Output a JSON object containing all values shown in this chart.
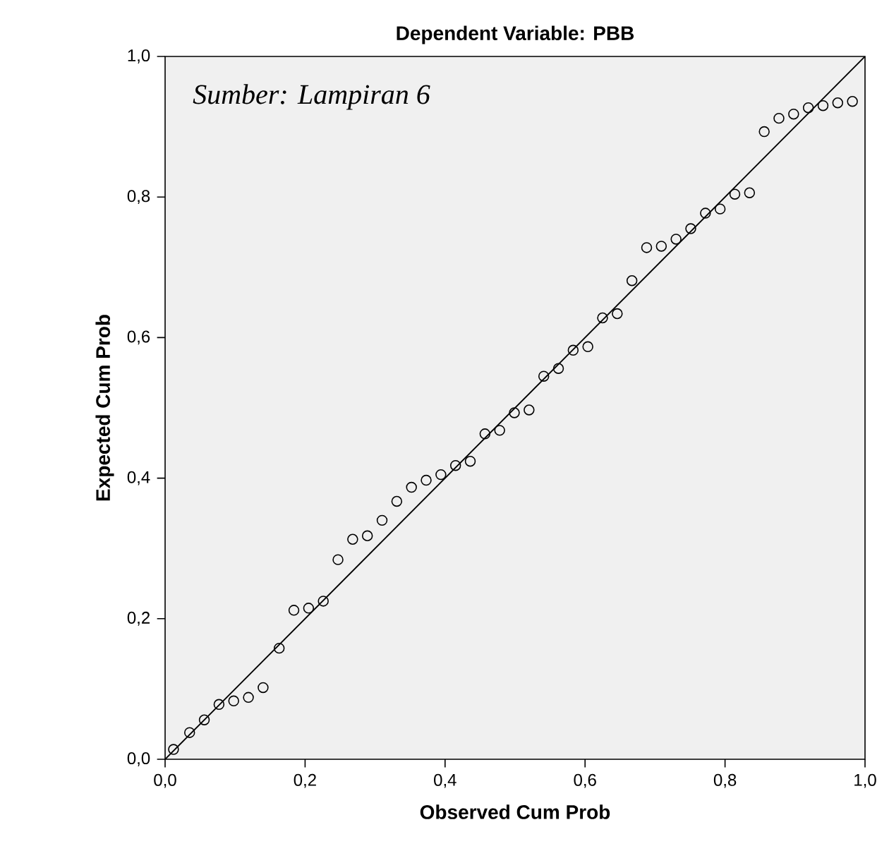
{
  "chart_data": {
    "type": "scatter",
    "title": "Dependent Variable: PBB",
    "xlabel": "Observed Cum Prob",
    "ylabel": "Expected Cum Prob",
    "annotations": [
      "*Sumber: Lampiran 6*"
    ],
    "xlim": [
      0,
      1
    ],
    "ylim": [
      0,
      1
    ],
    "xticks": [
      {
        "value": 0,
        "label": "0,0"
      },
      {
        "value": 0.2,
        "label": "0,2"
      },
      {
        "value": 0.4,
        "label": "0,4"
      },
      {
        "value": 0.6,
        "label": "0,6"
      },
      {
        "value": 0.8,
        "label": "0,8"
      },
      {
        "value": 1,
        "label": "1,0"
      }
    ],
    "yticks": [
      {
        "value": 0,
        "label": "0,0"
      },
      {
        "value": 0.2,
        "label": "0,2"
      },
      {
        "value": 0.4,
        "label": "0,4"
      },
      {
        "value": 0.6,
        "label": "0,6"
      },
      {
        "value": 0.8,
        "label": "0,8"
      },
      {
        "value": 1,
        "label": "1,0"
      }
    ],
    "series": [
      {
        "marker": "circle",
        "color": "#000000",
        "x": [
          0.012,
          0.035,
          0.056,
          0.077,
          0.098,
          0.119,
          0.14,
          0.163,
          0.184,
          0.205,
          0.226,
          0.247,
          0.268,
          0.289,
          0.31,
          0.331,
          0.352,
          0.373,
          0.394,
          0.415,
          0.436,
          0.457,
          0.478,
          0.499,
          0.52,
          0.541,
          0.562,
          0.583,
          0.604,
          0.625,
          0.646,
          0.667,
          0.688,
          0.709,
          0.73,
          0.751,
          0.772,
          0.793,
          0.814,
          0.835,
          0.856,
          0.877,
          0.898,
          0.919,
          0.94,
          0.961,
          0.982
        ],
        "values": [
          0.014,
          0.038,
          0.056,
          0.078,
          0.083,
          0.088,
          0.102,
          0.158,
          0.212,
          0.215,
          0.225,
          0.284,
          0.313,
          0.318,
          0.34,
          0.367,
          0.387,
          0.397,
          0.405,
          0.418,
          0.424,
          0.463,
          0.468,
          0.493,
          0.497,
          0.545,
          0.556,
          0.582,
          0.587,
          0.628,
          0.634,
          0.681,
          0.728,
          0.73,
          0.74,
          0.755,
          0.777,
          0.783,
          0.804,
          0.806,
          0.893,
          0.912,
          0.918,
          0.927,
          0.93,
          0.934,
          0.936
        ]
      },
      {
        "type": "line",
        "marker": "none",
        "color": "#000000",
        "x": [
          0,
          1
        ],
        "values": [
          0,
          1
        ]
      }
    ]
  }
}
